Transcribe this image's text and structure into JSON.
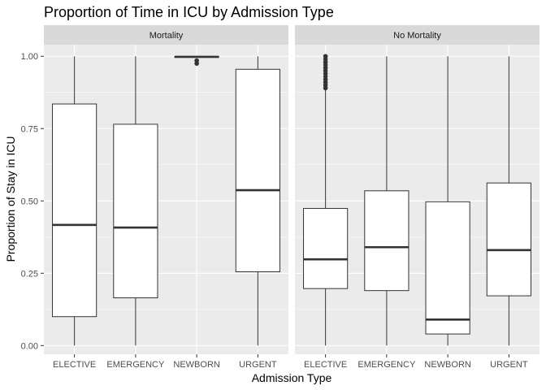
{
  "chart_data": {
    "type": "boxplot",
    "title": "Proportion of Time in ICU by Admission Type",
    "xlabel": "Admission Type",
    "ylabel": "Proportion of Stay in ICU",
    "ylim": [
      -0.03,
      1.04
    ],
    "yticks": [
      0.0,
      0.25,
      0.5,
      0.75,
      1.0
    ],
    "ytick_labels": [
      "0.00",
      "0.25",
      "0.50",
      "0.75",
      "1.00"
    ],
    "categories": [
      "ELECTIVE",
      "EMERGENCY",
      "NEWBORN",
      "URGENT"
    ],
    "grid": true,
    "panels": [
      {
        "label": "Mortality",
        "boxes": [
          {
            "category": "ELECTIVE",
            "min": 0.0,
            "q1": 0.1,
            "median": 0.417,
            "q3": 0.835,
            "max": 1.0,
            "outliers": []
          },
          {
            "category": "EMERGENCY",
            "min": 0.0,
            "q1": 0.165,
            "median": 0.408,
            "q3": 0.765,
            "max": 1.0,
            "outliers": []
          },
          {
            "category": "NEWBORN",
            "min": 0.998,
            "q1": 0.998,
            "median": 0.998,
            "q3": 0.999,
            "max": 1.0,
            "outliers": [
              0.975,
              0.985
            ]
          },
          {
            "category": "URGENT",
            "min": 0.0,
            "q1": 0.255,
            "median": 0.537,
            "q3": 0.955,
            "max": 1.0,
            "outliers": []
          }
        ]
      },
      {
        "label": "No Mortality",
        "boxes": [
          {
            "category": "ELECTIVE",
            "min": 0.0,
            "q1": 0.197,
            "median": 0.298,
            "q3": 0.474,
            "max": 0.885,
            "outliers": [
              0.89,
              0.9,
              0.91,
              0.92,
              0.93,
              0.94,
              0.95,
              0.96,
              0.97,
              0.98,
              0.99,
              1.0
            ]
          },
          {
            "category": "EMERGENCY",
            "min": 0.0,
            "q1": 0.19,
            "median": 0.34,
            "q3": 0.535,
            "max": 1.0,
            "outliers": []
          },
          {
            "category": "NEWBORN",
            "min": 0.0,
            "q1": 0.04,
            "median": 0.09,
            "q3": 0.497,
            "max": 1.0,
            "outliers": []
          },
          {
            "category": "URGENT",
            "min": 0.0,
            "q1": 0.172,
            "median": 0.33,
            "q3": 0.562,
            "max": 1.0,
            "outliers": []
          }
        ]
      }
    ],
    "colors": {
      "panel_bg": "#ebebeb",
      "strip_bg": "#d9d9d9",
      "grid": "#ffffff",
      "box_fill": "#ffffff",
      "box_line": "#333333"
    }
  }
}
